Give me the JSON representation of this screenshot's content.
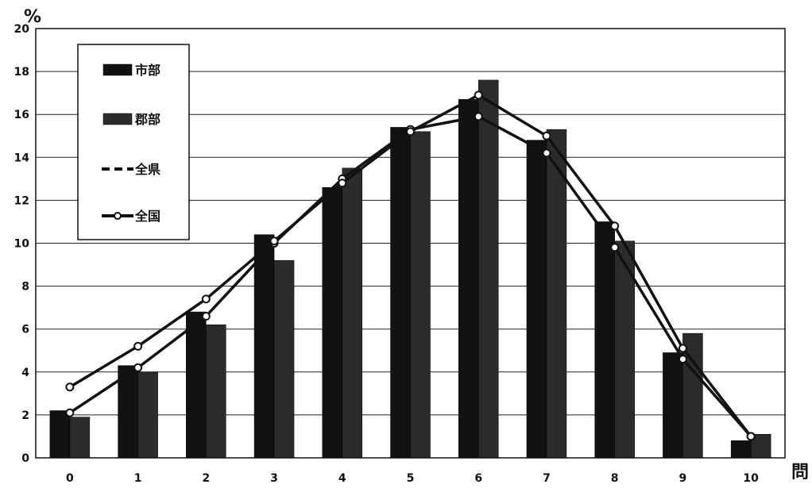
{
  "chart_data": {
    "type": "bar",
    "categories": [
      "0",
      "1",
      "2",
      "3",
      "4",
      "5",
      "6",
      "7",
      "8",
      "9",
      "10"
    ],
    "y_unit": "%",
    "x_unit": "問",
    "ylim": [
      0,
      20
    ],
    "y_ticks": [
      "0",
      "2",
      "4",
      "6",
      "8",
      "10",
      "12",
      "14",
      "16",
      "18",
      "20"
    ],
    "grid": true,
    "legend_position": "top-left",
    "series": [
      {
        "name": "市部",
        "kind": "bar",
        "color": "#111111",
        "values": [
          2.2,
          4.3,
          6.8,
          10.4,
          12.6,
          15.4,
          16.7,
          14.8,
          11.0,
          4.9,
          0.8
        ]
      },
      {
        "name": "郡部",
        "kind": "bar",
        "color": "#2b2b2b",
        "values": [
          1.9,
          4.0,
          6.2,
          9.2,
          13.5,
          15.2,
          17.6,
          15.3,
          10.1,
          5.8,
          1.1
        ]
      },
      {
        "name": "全県",
        "kind": "line",
        "color": "#111111",
        "values": [
          2.1,
          4.2,
          6.6,
          10.0,
          13.0,
          15.3,
          15.9,
          14.2,
          9.8,
          4.6,
          1.0
        ]
      },
      {
        "name": "全国",
        "kind": "line",
        "color": "#111111",
        "values": [
          3.3,
          5.2,
          7.4,
          10.1,
          12.8,
          15.2,
          16.9,
          15.0,
          10.8,
          5.1,
          1.0
        ]
      }
    ]
  }
}
